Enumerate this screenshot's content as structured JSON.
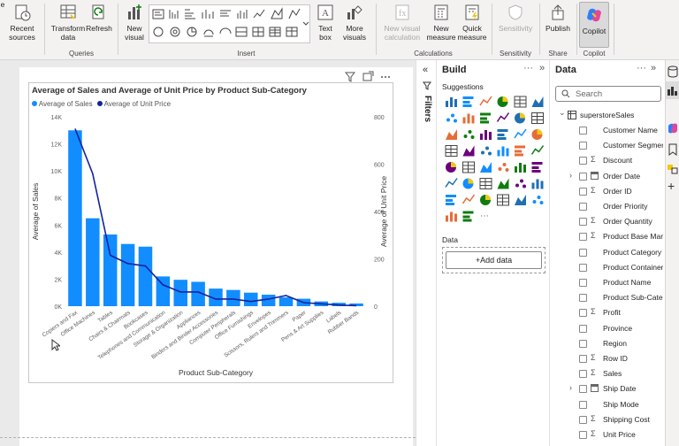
{
  "ribbon": {
    "buttons": [
      {
        "label": "Recent\nsources",
        "arrow": "˅",
        "icon": "recent-sources-icon"
      },
      {
        "label": "Transform\ndata",
        "arrow": "˅",
        "icon": "transform-data-icon"
      },
      {
        "label": "Refresh",
        "icon": "refresh-icon"
      },
      {
        "label": "New\nvisual",
        "icon": "new-visual-icon"
      },
      {
        "label": "Text\nbox",
        "icon": "text-box-icon"
      },
      {
        "label": "More\nvisuals",
        "arrow": "˅",
        "icon": "more-visuals-icon"
      },
      {
        "label": "New visual\ncalculation",
        "icon": "new-visual-calculation-icon",
        "disabled": true
      },
      {
        "label": "New\nmeasure",
        "icon": "new-measure-icon"
      },
      {
        "label": "Quick\nmeasure",
        "icon": "quick-measure-icon"
      },
      {
        "label": "Sensitivity",
        "arrow": "˅",
        "icon": "sensitivity-icon",
        "disabled": true
      },
      {
        "label": "Publish",
        "icon": "publish-icon"
      },
      {
        "label": "Copilot",
        "icon": "copilot-icon"
      }
    ],
    "groups": [
      "Queries",
      "Insert",
      "Calculations",
      "Sensitivity",
      "Share",
      "Copilot"
    ],
    "text_icon_glyph": "A"
  },
  "chart_header_icons": [
    "filter-icon",
    "focus-mode-icon",
    "more-options-icon"
  ],
  "chart_data": {
    "type": "bar",
    "title": "Average of Sales and Average of Unit Price by Product Sub-Category",
    "xlabel": "Product Sub-Category",
    "ylabel": "Average of Sales",
    "ylabel2": "Average of Unit Price",
    "legend_position": "top-left",
    "colors": {
      "sales": "#118dff",
      "unit_price": "#12239e"
    },
    "categories": [
      "Copiers and Fax",
      "Office Machines",
      "Tables",
      "Chairs & Chairmats",
      "Bookcases",
      "Telephones and Communication",
      "Storage & Organization",
      "Appliances",
      "Binders and Binder Accessories",
      "Computer Peripherals",
      "Office Furnishings",
      "Envelopes",
      "Scissors, Rulers and Trimmers",
      "Paper",
      "Pens & Art Supplies",
      "Labels",
      "Rubber Bands"
    ],
    "series": [
      {
        "name": "Average of Sales",
        "type": "bar",
        "axis": "left",
        "values": [
          13000,
          6500,
          5300,
          4600,
          4400,
          2200,
          1950,
          1800,
          1300,
          1200,
          1000,
          850,
          650,
          550,
          350,
          250,
          200
        ]
      },
      {
        "name": "Average of Unit Price",
        "type": "line",
        "axis": "right",
        "values": [
          750,
          560,
          215,
          180,
          170,
          90,
          60,
          60,
          30,
          30,
          20,
          30,
          45,
          15,
          10,
          5,
          2
        ]
      }
    ],
    "ylim": [
      0,
      14000
    ],
    "yticks": [
      "0K",
      "2K",
      "4K",
      "6K",
      "8K",
      "10K",
      "12K",
      "14K"
    ],
    "ylim2": [
      0,
      800
    ],
    "yticks2": [
      "0",
      "200",
      "400",
      "600",
      "800"
    ]
  },
  "filters_label": "Filters",
  "build": {
    "title": "Build",
    "suggestions_label": "Suggestions",
    "data_label": "Data",
    "add_data": "+Add data"
  },
  "data_pane": {
    "title": "Data",
    "search_placeholder": "Search",
    "table_name": "superstoreSales",
    "fields": [
      {
        "name": "Customer Name",
        "sigma": false,
        "expand": false
      },
      {
        "name": "Customer Segment",
        "sigma": false,
        "expand": false
      },
      {
        "name": "Discount",
        "sigma": true,
        "expand": false
      },
      {
        "name": "Order Date",
        "sigma": false,
        "expand": true,
        "calendar": true
      },
      {
        "name": "Order ID",
        "sigma": true,
        "expand": false
      },
      {
        "name": "Order Priority",
        "sigma": false,
        "expand": false
      },
      {
        "name": "Order Quantity",
        "sigma": true,
        "expand": false
      },
      {
        "name": "Product Base Margin",
        "sigma": true,
        "expand": false
      },
      {
        "name": "Product Category",
        "sigma": false,
        "expand": false
      },
      {
        "name": "Product Container",
        "sigma": false,
        "expand": false
      },
      {
        "name": "Product Name",
        "sigma": false,
        "expand": false
      },
      {
        "name": "Product Sub-Category",
        "sigma": false,
        "expand": false
      },
      {
        "name": "Profit",
        "sigma": true,
        "expand": false
      },
      {
        "name": "Province",
        "sigma": false,
        "expand": false
      },
      {
        "name": "Region",
        "sigma": false,
        "expand": false
      },
      {
        "name": "Row ID",
        "sigma": true,
        "expand": false
      },
      {
        "name": "Sales",
        "sigma": true,
        "expand": false
      },
      {
        "name": "Ship Date",
        "sigma": false,
        "expand": true,
        "calendar": true
      },
      {
        "name": "Ship Mode",
        "sigma": false,
        "expand": false
      },
      {
        "name": "Shipping Cost",
        "sigma": true,
        "expand": false
      },
      {
        "name": "Unit Price",
        "sigma": true,
        "expand": false
      }
    ]
  },
  "glyphs": {
    "collapse": "«",
    "expand": "»",
    "more": "···",
    "sigma": "Σ",
    "chevron_right": "›",
    "chevron_down": "⌄",
    "plus": "+"
  }
}
